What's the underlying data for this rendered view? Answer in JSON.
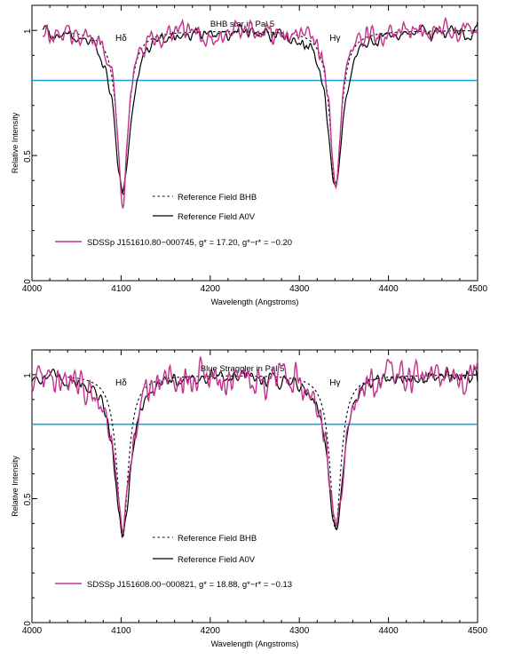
{
  "chart_data": [
    {
      "type": "line",
      "title": "BHB star in Pal 5",
      "xlabel": "Wavelength (Angstroms)",
      "ylabel": "Relative Intensity",
      "xlim": [
        4000,
        4500
      ],
      "ylim": [
        0,
        1.1
      ],
      "xticks": [
        4000,
        4100,
        4200,
        4300,
        4400,
        4500
      ],
      "yticks": [
        0,
        0.5,
        1
      ],
      "yticklabels": [
        "0",
        "0.5",
        "1"
      ],
      "xticklabels": [
        "4000",
        "4100",
        "4200",
        "4300",
        "4400",
        "4500"
      ],
      "annotations": [
        {
          "text": "Hδ",
          "x": 4100
        },
        {
          "text": "Hγ",
          "x": 4340
        }
      ],
      "reference_line_y": 0.8,
      "series": [
        {
          "name": "Reference Field BHB",
          "style": "dotted",
          "color": "#000000",
          "lines": [
            {
              "center": 4101.7,
              "depth": 0.66,
              "width": 7.5
            },
            {
              "center": 4340.5,
              "depth": 0.625,
              "width": 7.5
            }
          ],
          "x_range": [
            4040,
            4500
          ]
        },
        {
          "name": "Reference Field A0V",
          "style": "solid",
          "color": "#000000",
          "lines": [
            {
              "center": 4101.7,
              "depth": 0.64,
              "width": 11
            },
            {
              "center": 4340.5,
              "depth": 0.62,
              "width": 10.5
            }
          ],
          "x_range": [
            4012,
            4500
          ]
        },
        {
          "name": "SDSSp J151610.80−000745, g* = 17.20, g*−r* = −0.20",
          "style": "solid",
          "color": "#c0338a",
          "lines": [
            {
              "center": 4101.7,
              "depth": 0.66,
              "width": 7.5
            },
            {
              "center": 4340.5,
              "depth": 0.63,
              "width": 7.2
            }
          ],
          "x_range": [
            4012,
            4500
          ]
        }
      ]
    },
    {
      "type": "line",
      "title": "Blue Straggler in Pal 5",
      "xlabel": "Wavelength (Angstroms)",
      "ylabel": "Relative Intensity",
      "xlim": [
        4000,
        4500
      ],
      "ylim": [
        0,
        1.1
      ],
      "xticks": [
        4000,
        4100,
        4200,
        4300,
        4400,
        4500
      ],
      "yticks": [
        0,
        0.5,
        1
      ],
      "yticklabels": [
        "0",
        "0.5",
        "1"
      ],
      "xticklabels": [
        "4000",
        "4100",
        "4200",
        "4300",
        "4400",
        "4500"
      ],
      "annotations": [
        {
          "text": "Hδ",
          "x": 4100
        },
        {
          "text": "Hγ",
          "x": 4340
        }
      ],
      "reference_line_y": 0.8,
      "series": [
        {
          "name": "Reference Field BHB",
          "style": "dotted",
          "color": "#000000",
          "lines": [
            {
              "center": 4101.7,
              "depth": 0.66,
              "width": 7.5
            },
            {
              "center": 4340.5,
              "depth": 0.625,
              "width": 7.5
            }
          ],
          "x_range": [
            4040,
            4500
          ]
        },
        {
          "name": "Reference Field A0V",
          "style": "solid",
          "color": "#000000",
          "lines": [
            {
              "center": 4101.7,
              "depth": 0.64,
              "width": 11
            },
            {
              "center": 4340.5,
              "depth": 0.62,
              "width": 10.5
            }
          ],
          "x_range": [
            4000,
            4500
          ]
        },
        {
          "name": "SDSSp J151608.00−000821, g* = 18.88, g*−r* = −0.13",
          "style": "solid",
          "color": "#c0338a",
          "lines": [
            {
              "center": 4101.7,
              "depth": 0.65,
              "width": 10
            },
            {
              "center": 4340.5,
              "depth": 0.63,
              "width": 10
            }
          ],
          "x_range": [
            4000,
            4500
          ]
        }
      ]
    }
  ]
}
